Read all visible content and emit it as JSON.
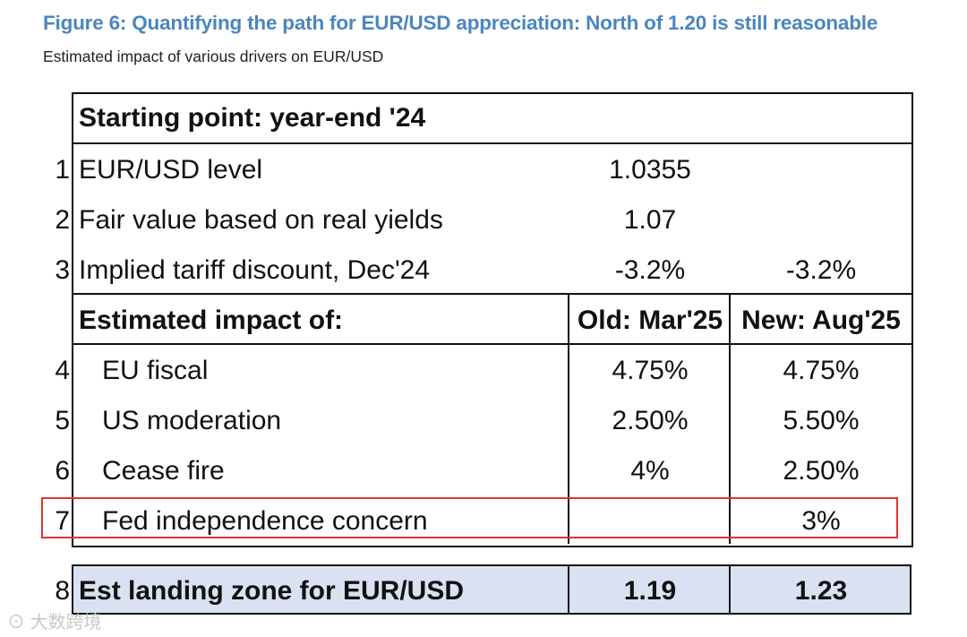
{
  "header": {
    "title": "Figure 6: Quantifying the path for EUR/USD appreciation: North of 1.20 is still reasonable",
    "subtitle": "Estimated impact of various drivers on EUR/USD"
  },
  "table": {
    "starting_header": "Starting point: year-end '24",
    "impact_header": "Estimated impact of:",
    "col_old": "Old: Mar'25",
    "col_new": "New: Aug'25",
    "rows": [
      {
        "num": "1",
        "label": "EUR/USD level",
        "old": "1.0355",
        "new": ""
      },
      {
        "num": "2",
        "label": "Fair value based on real yields",
        "old": "1.07",
        "new": ""
      },
      {
        "num": "3",
        "label": "Implied tariff discount, Dec'24",
        "old": "-3.2%",
        "new": "-3.2%"
      },
      {
        "num": "4",
        "label": "EU fiscal",
        "old": "4.75%",
        "new": "4.75%"
      },
      {
        "num": "5",
        "label": "US moderation",
        "old": "2.50%",
        "new": "5.50%"
      },
      {
        "num": "6",
        "label": "Cease fire",
        "old": "4%",
        "new": "2.50%"
      },
      {
        "num": "7",
        "label": "Fed independence concern",
        "old": "",
        "new": "3%"
      }
    ],
    "total": {
      "num": "8",
      "label": "Est landing zone for EUR/USD",
      "old": "1.19",
      "new": "1.23"
    }
  },
  "watermark": "大数跨境",
  "colors": {
    "title": "#4a86be",
    "highlight_border": "#e0322f",
    "total_fill": "#d9e1f2"
  }
}
